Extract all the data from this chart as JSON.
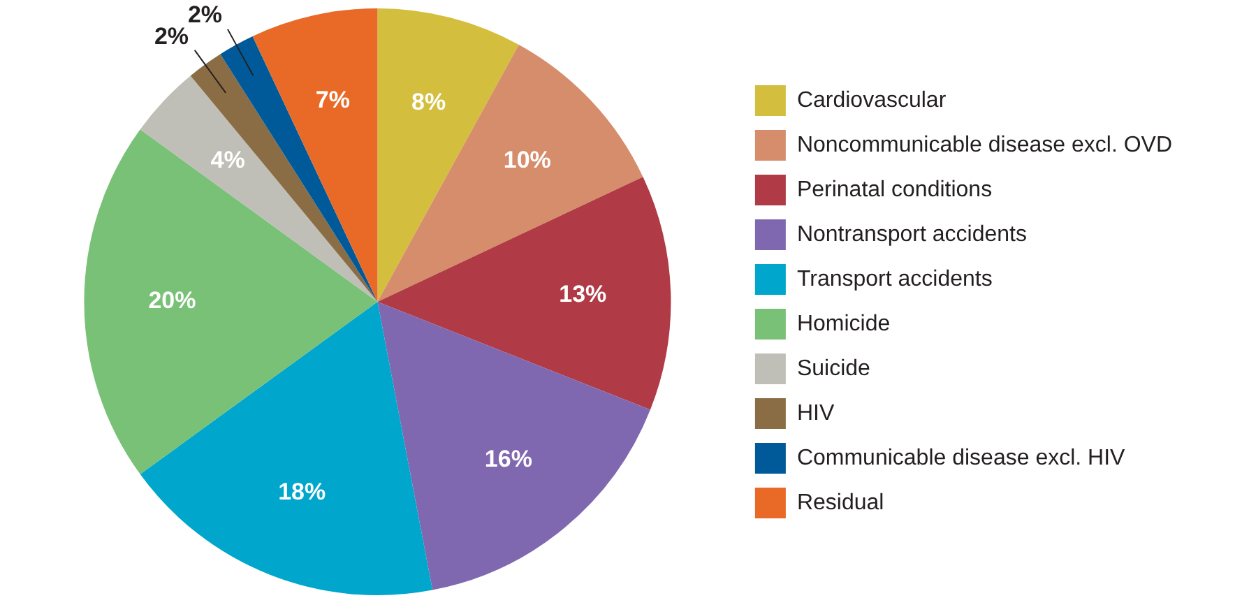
{
  "chart_data": {
    "type": "pie",
    "categories": [
      "Cardiovascular",
      "Noncommunicable disease excl. OVD",
      "Perinatal conditions",
      "Nontransport accidents",
      "Transport accidents",
      "Homicide",
      "Suicide",
      "HIV",
      "Communicable disease excl. HIV",
      "Residual"
    ],
    "values": [
      8,
      10,
      13,
      16,
      18,
      20,
      4,
      2,
      2,
      7
    ],
    "colors": [
      "#d4be3e",
      "#d58d6c",
      "#b03a45",
      "#7f68b0",
      "#00a6cc",
      "#78c176",
      "#bfbfb7",
      "#8b6d45",
      "#005a9a",
      "#e86a26"
    ],
    "value_labels": [
      "8%",
      "10%",
      "13%",
      "16%",
      "18%",
      "20%",
      "4%",
      "2%",
      "2%",
      "7%"
    ],
    "legend": "right"
  }
}
